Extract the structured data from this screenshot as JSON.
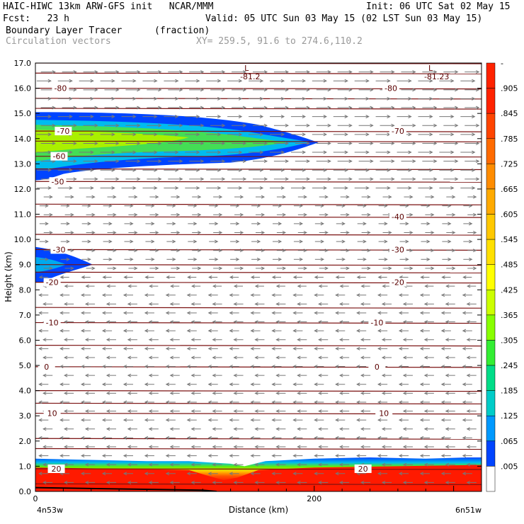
{
  "header": {
    "line1_left": "HAIC-HIWC 13km ARW-GFS init   NCAR/MMM",
    "line1_right": "Init: 06 UTC Sat 02 May 15",
    "line2_left": "Fcst:   23 h",
    "line2_right": "Valid: 05 UTC Sun 03 May 15 (02 LST Sun 03 May 15)",
    "line3_left": "Boundary Layer Tracer",
    "line3_mid": "(fraction)",
    "line4_left": "Circulation vectors",
    "line4_mid": "XY= 259.5, 91.6 to 274.6,110.2"
  },
  "chart_data": {
    "type": "heatmap",
    "title": "Boundary Layer Tracer (fraction)",
    "xlabel": "Distance (km)",
    "ylabel": "Height (km)",
    "xlim": [
      0,
      320
    ],
    "ylim": [
      0,
      17
    ],
    "x_ticks": [
      0,
      200
    ],
    "y_ticks": [
      "0.0",
      "1.0",
      "2.0",
      "3.0",
      "4.0",
      "5.0",
      "6.0",
      "7.0",
      "8.0",
      "9.0",
      "10.0",
      "11.0",
      "12.0",
      "13.0",
      "14.0",
      "15.0",
      "16.0",
      "17.0"
    ],
    "x_endpoint_labels": [
      "4n53w",
      "6n51w"
    ],
    "colorbar_labels": [
      "-",
      ".905",
      ".845",
      ".785",
      ".725",
      ".665",
      ".605",
      ".545",
      ".485",
      ".425",
      ".365",
      ".305",
      ".245",
      ".185",
      ".125",
      ".065",
      ".005"
    ],
    "colorbar_colors": [
      "#ff2200",
      "#ff2200",
      "#ff4400",
      "#ff6a00",
      "#ff8c00",
      "#ffaa00",
      "#ffc800",
      "#ffe000",
      "#ffff00",
      "#ccff00",
      "#88ff00",
      "#33ee33",
      "#00dd88",
      "#00ccc8",
      "#0099ff",
      "#0044ff",
      "#ffffff"
    ],
    "temperature_contours": [
      {
        "label": "-80",
        "height": 16.0,
        "label_positions_km": [
          18,
          255
        ]
      },
      {
        "label": "-70",
        "height": 14.3,
        "label_positions_km": [
          20,
          260
        ]
      },
      {
        "label": "-60",
        "height": 13.3,
        "label_positions_km": [
          17
        ]
      },
      {
        "label": "-50",
        "height": 12.3,
        "label_positions_km": [
          16
        ]
      },
      {
        "label": "-40",
        "height": 10.9,
        "label_positions_km": [
          260
        ]
      },
      {
        "label": "-30",
        "height": 9.6,
        "label_positions_km": [
          17,
          260
        ]
      },
      {
        "label": "-20",
        "height": 8.3,
        "label_positions_km": [
          12,
          260
        ]
      },
      {
        "label": "-10",
        "height": 6.7,
        "label_positions_km": [
          12,
          245
        ]
      },
      {
        "label": "0",
        "height": 4.95,
        "label_positions_km": [
          8,
          245
        ]
      },
      {
        "label": "10",
        "height": 3.1,
        "label_positions_km": [
          12,
          250
        ]
      },
      {
        "label": "20",
        "height": 0.9,
        "label_positions_km": [
          15,
          235
        ]
      }
    ],
    "other_isotherm_heights_km": [
      0.3,
      1.7,
      2.1,
      3.5,
      4.0,
      5.8,
      7.3,
      8.7,
      9.0,
      10.2,
      11.4,
      12.8,
      13.9,
      15.2,
      15.6,
      16.6,
      17.0
    ],
    "low_markers": [
      {
        "label": "L",
        "value": "-81.2",
        "x_km": 158,
        "height": 16.6
      },
      {
        "label": "L",
        "value": "-81.23",
        "x_km": 290,
        "height": 16.6
      }
    ],
    "tracer_features": [
      {
        "name": "upper outflow plume",
        "x_range_km": [
          0,
          200
        ],
        "height_range_km": [
          12.5,
          15.0
        ],
        "peak_value": 0.4
      },
      {
        "name": "mid-level tongue",
        "x_range_km": [
          0,
          40
        ],
        "height_range_km": [
          8.3,
          9.7
        ],
        "peak_value": 0.1
      },
      {
        "name": "boundary layer",
        "x_range_km": [
          0,
          320
        ],
        "height_range_km": [
          0.0,
          1.3
        ],
        "peak_value": 1.0
      }
    ],
    "wind": {
      "upper_direction": "eastward",
      "lower_direction": "westward",
      "reversal_height_km": 8.5
    }
  }
}
